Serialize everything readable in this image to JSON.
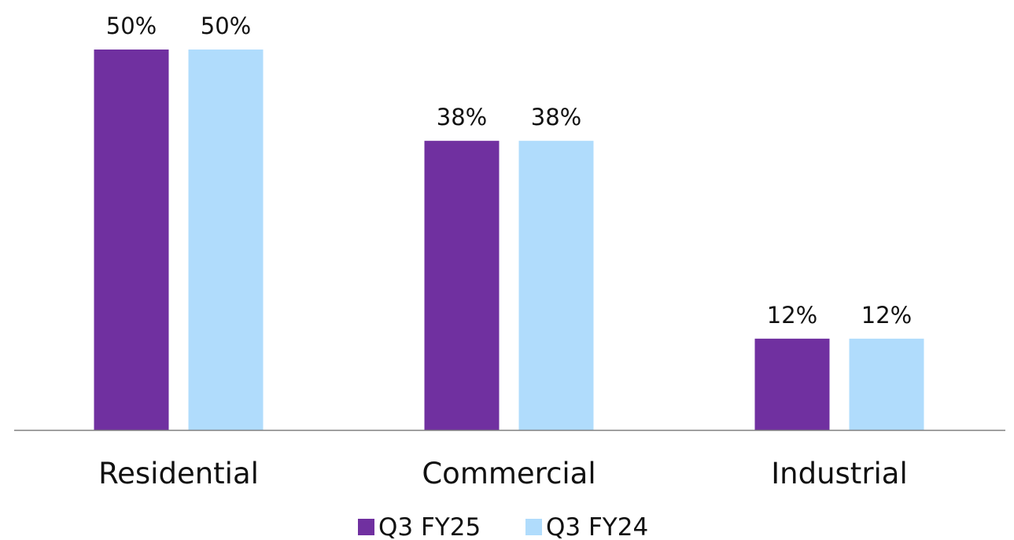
{
  "chart_data": {
    "type": "bar",
    "title": "",
    "xlabel": "",
    "ylabel": "",
    "categories": [
      "Residential",
      "Commercial",
      "Industrial"
    ],
    "series": [
      {
        "name": "Q3 FY25",
        "color": "#7030a0",
        "values": [
          50,
          38,
          12
        ],
        "labels": [
          "50%",
          "38%",
          "12%"
        ]
      },
      {
        "name": "Q3 FY24",
        "color": "#b0dcfc",
        "values": [
          50,
          38,
          12
        ],
        "labels": [
          "50%",
          "38%",
          "12%"
        ]
      }
    ],
    "ylim": [
      0,
      50
    ],
    "y_unit": "%",
    "grid": false,
    "legend_position": "bottom",
    "axis_color": "#7f7f7f"
  }
}
